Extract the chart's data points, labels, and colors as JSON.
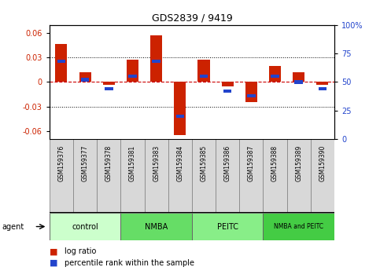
{
  "title": "GDS2839 / 9419",
  "samples": [
    "GSM159376",
    "GSM159377",
    "GSM159378",
    "GSM159381",
    "GSM159383",
    "GSM159384",
    "GSM159385",
    "GSM159386",
    "GSM159387",
    "GSM159388",
    "GSM159389",
    "GSM159390"
  ],
  "log_ratios": [
    0.047,
    0.012,
    -0.003,
    0.027,
    0.057,
    -0.065,
    0.027,
    -0.005,
    -0.025,
    0.02,
    0.012,
    -0.003
  ],
  "percentile_ranks": [
    68,
    52,
    44,
    55,
    68,
    20,
    55,
    42,
    38,
    55,
    50,
    44
  ],
  "groups": [
    {
      "label": "control",
      "color": "#ccffcc",
      "start": 0,
      "end": 3
    },
    {
      "label": "NMBA",
      "color": "#66dd66",
      "start": 3,
      "end": 6
    },
    {
      "label": "PEITC",
      "color": "#88ee88",
      "start": 6,
      "end": 9
    },
    {
      "label": "NMBA and PEITC",
      "color": "#44cc44",
      "start": 9,
      "end": 12
    }
  ],
  "ylim": [
    -0.07,
    0.07
  ],
  "yticks_left": [
    -0.06,
    -0.03,
    0,
    0.03,
    0.06
  ],
  "ytick_labels_left": [
    "-0.06",
    "-0.03",
    "0",
    "0.03",
    "0.06"
  ],
  "yticks_right": [
    0,
    25,
    50,
    75,
    100
  ],
  "ytick_labels_right": [
    "0",
    "25",
    "50",
    "75",
    "100%"
  ],
  "bar_color_red": "#cc2200",
  "bar_color_blue": "#2244cc",
  "dashed_zero_color": "#cc0000",
  "bar_width": 0.5,
  "percentile_bar_width": 0.35,
  "pct_bar_height": 0.004,
  "label_box_color": "#d8d8d8",
  "xlabel": "agent",
  "font_size_ticks": 7,
  "font_size_title": 9,
  "font_size_samples": 5.5,
  "font_size_groups": 7,
  "font_size_legend": 7
}
